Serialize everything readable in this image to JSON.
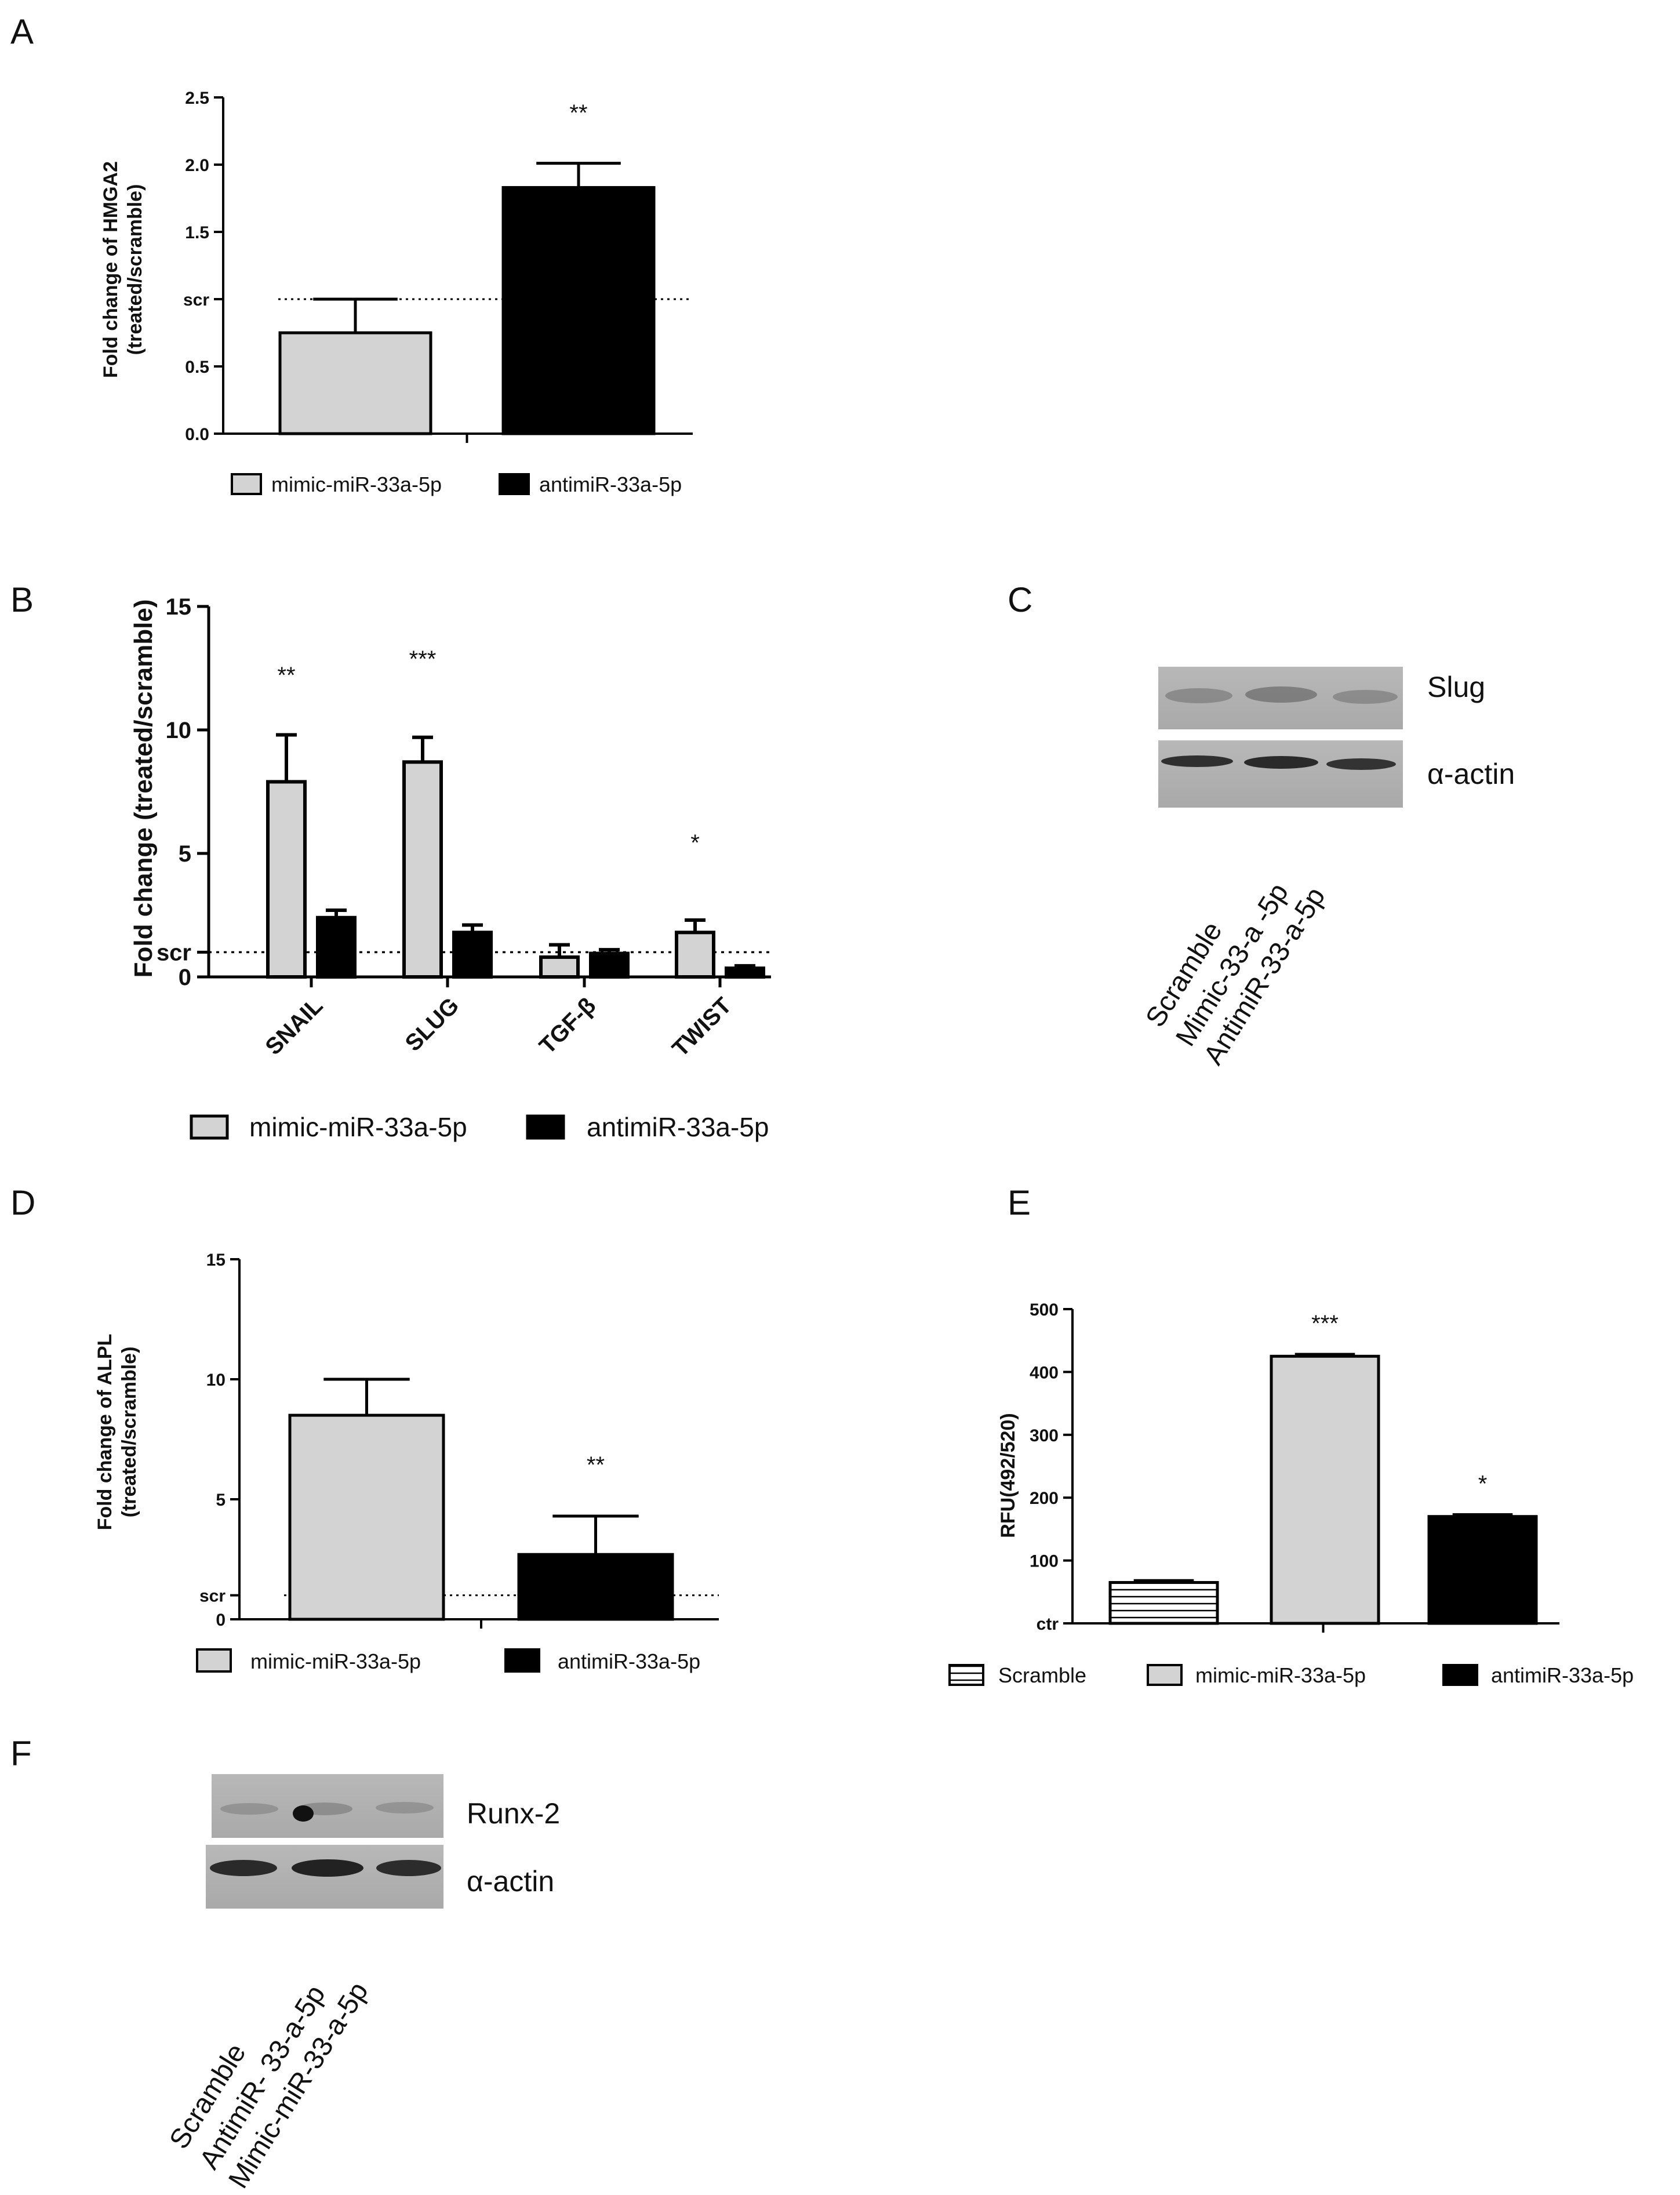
{
  "panels": {
    "A": "A",
    "B": "B",
    "C": "C",
    "D": "D",
    "E": "E",
    "F": "F"
  },
  "colors": {
    "mimic": "#d3d3d3",
    "anti": "#000000",
    "scramble": "#ffffff",
    "edge": "#000000"
  },
  "chart_data": [
    {
      "id": "A",
      "type": "bar",
      "ylabel": [
        "Fold change of HMGA2",
        "(treated/scramble)"
      ],
      "ylim": [
        0,
        2.5
      ],
      "yticks": [
        "0.0",
        "0.5",
        "scr",
        "1.5",
        "2.0",
        "2.5"
      ],
      "ytick_values": [
        0,
        0.5,
        1.0,
        1.5,
        2.0,
        2.5
      ],
      "reference_line": 1.0,
      "series": [
        {
          "name": "mimic-miR-33a-5p",
          "value": 0.75,
          "error": 0.25,
          "sig": ""
        },
        {
          "name": "antimiR-33a-5p",
          "value": 1.83,
          "error": 0.18,
          "sig": "**"
        }
      ],
      "legend": [
        "mimic-miR-33a-5p",
        "antimiR-33a-5p"
      ]
    },
    {
      "id": "B",
      "type": "bar",
      "ylabel": "Fold change (treated/scramble)",
      "ylim": [
        0,
        15
      ],
      "yticks": [
        "0",
        "scr",
        "5",
        "10",
        "15"
      ],
      "ytick_values": [
        0,
        1,
        5,
        10,
        15
      ],
      "reference_line": 1.0,
      "categories": [
        "SNAIL",
        "SLUG",
        "TGF-β",
        "TWIST"
      ],
      "series": [
        {
          "name": "mimic-miR-33a-5p",
          "values": [
            7.9,
            8.7,
            0.8,
            1.8
          ],
          "errors": [
            1.9,
            1.0,
            0.5,
            0.5
          ]
        },
        {
          "name": "antimiR-33a-5p",
          "values": [
            2.4,
            1.8,
            0.95,
            0.35
          ],
          "errors": [
            0.3,
            0.3,
            0.15,
            0.1
          ]
        }
      ],
      "sig": [
        "**",
        "***",
        "",
        "*"
      ],
      "legend": [
        "mimic-miR-33a-5p",
        "antimiR-33a-5p"
      ]
    },
    {
      "id": "D",
      "type": "bar",
      "ylabel": [
        "Fold change of ALPL",
        "(treated/scramble)"
      ],
      "ylim": [
        0,
        15
      ],
      "yticks": [
        "0",
        "scr",
        "5",
        "10",
        "15"
      ],
      "ytick_values": [
        0,
        1,
        5,
        10,
        15
      ],
      "reference_line": 1.0,
      "series": [
        {
          "name": "mimic-miR-33a-5p",
          "value": 8.5,
          "error": 1.5,
          "sig": ""
        },
        {
          "name": "antimiR-33a-5p",
          "value": 2.7,
          "error": 1.6,
          "sig": "**"
        }
      ],
      "legend": [
        "mimic-miR-33a-5p",
        "antimiR-33a-5p"
      ]
    },
    {
      "id": "E",
      "type": "bar",
      "ylabel": "RFU(492/520)",
      "ylim": [
        0,
        500
      ],
      "yticks": [
        "ctr",
        "100",
        "200",
        "300",
        "400",
        "500"
      ],
      "ytick_values": [
        0,
        100,
        200,
        300,
        400,
        500
      ],
      "reference_line": 0,
      "series": [
        {
          "name": "Scramble",
          "value": 65,
          "error": 3,
          "sig": ""
        },
        {
          "name": "mimic-miR-33a-5p",
          "value": 425,
          "error": 3,
          "sig": "***"
        },
        {
          "name": "antimiR-33a-5p",
          "value": 170,
          "error": 3,
          "sig": "*"
        }
      ],
      "legend": [
        "Scramble",
        "mimic-miR-33a-5p",
        "antimiR-33a-5p"
      ]
    }
  ],
  "blots": {
    "C": {
      "rows": [
        "Slug",
        "α-actin"
      ],
      "lanes": [
        "Scramble",
        "Mimic-33-a -5p",
        "AntimiR-33-a-5p"
      ]
    },
    "F": {
      "rows": [
        "Runx-2",
        "α-actin"
      ],
      "lanes": [
        "Scramble",
        "AntimiR- 33-a-5p",
        "Mimic-miR-33-a-5p"
      ]
    }
  }
}
